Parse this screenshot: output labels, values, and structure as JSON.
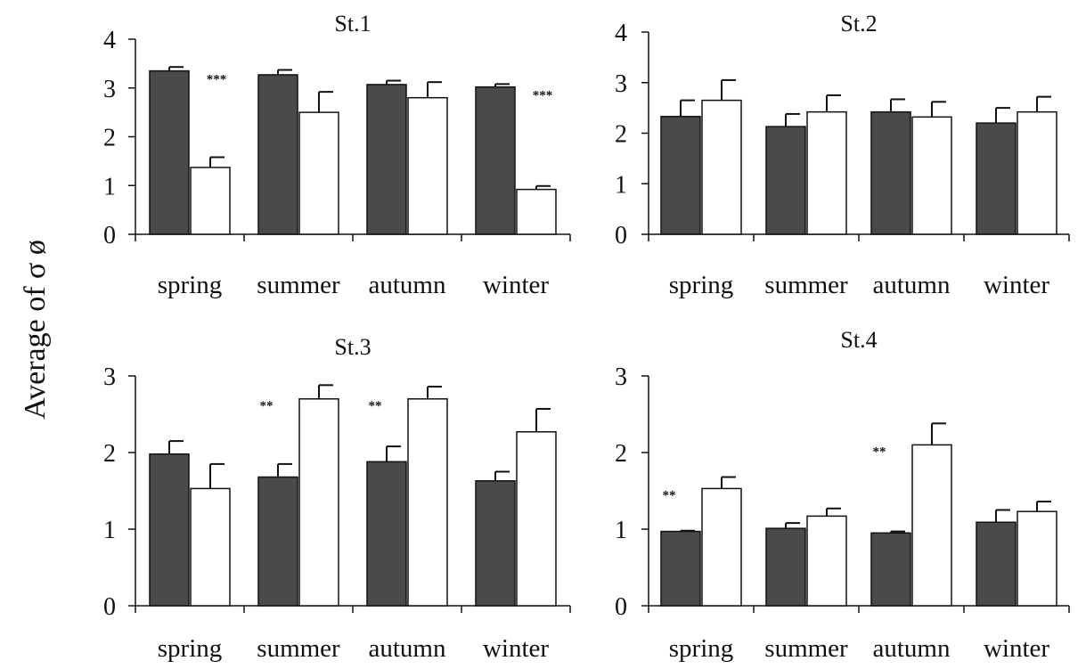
{
  "figure": {
    "ylabel": "Average of σ ø"
  },
  "chart_data": [
    {
      "type": "bar",
      "title": "St.1",
      "categories": [
        "spring",
        "summer",
        "autumn",
        "winter"
      ],
      "ylim": [
        0,
        4
      ],
      "yticks": [
        0,
        1,
        2,
        3,
        4
      ],
      "series": [
        {
          "color": "#4a4a4a",
          "values": [
            3.35,
            3.27,
            3.07,
            3.02
          ],
          "errors": [
            0.08,
            0.1,
            0.08,
            0.06
          ]
        },
        {
          "color": "#ffffff",
          "values": [
            1.37,
            2.5,
            2.8,
            0.92
          ],
          "errors": [
            0.21,
            0.42,
            0.32,
            0.07
          ]
        }
      ],
      "annotations": [
        {
          "category": "spring",
          "text": "***"
        },
        {
          "category": "winter",
          "text": "***"
        }
      ]
    },
    {
      "type": "bar",
      "title": "St.2",
      "categories": [
        "spring",
        "summer",
        "autumn",
        "winter"
      ],
      "ylim": [
        0,
        4
      ],
      "yticks": [
        0,
        1,
        2,
        3,
        4
      ],
      "series": [
        {
          "color": "#4a4a4a",
          "values": [
            2.33,
            2.13,
            2.42,
            2.2
          ],
          "errors": [
            0.32,
            0.25,
            0.25,
            0.3
          ]
        },
        {
          "color": "#ffffff",
          "values": [
            2.65,
            2.42,
            2.32,
            2.42
          ],
          "errors": [
            0.4,
            0.33,
            0.3,
            0.3
          ]
        }
      ],
      "annotations": []
    },
    {
      "type": "bar",
      "title": "St.3",
      "categories": [
        "spring",
        "summer",
        "autumn",
        "winter"
      ],
      "ylim": [
        0,
        3
      ],
      "yticks": [
        0,
        1,
        2,
        3
      ],
      "series": [
        {
          "color": "#4a4a4a",
          "values": [
            1.98,
            1.68,
            1.88,
            1.63
          ],
          "errors": [
            0.17,
            0.17,
            0.2,
            0.12
          ]
        },
        {
          "color": "#ffffff",
          "values": [
            1.53,
            2.7,
            2.7,
            2.27
          ],
          "errors": [
            0.32,
            0.18,
            0.16,
            0.3
          ]
        }
      ],
      "annotations": [
        {
          "category": "summer",
          "text": "**"
        },
        {
          "category": "autumn",
          "text": "**"
        }
      ]
    },
    {
      "type": "bar",
      "title": "St.4",
      "categories": [
        "spring",
        "summer",
        "autumn",
        "winter"
      ],
      "ylim": [
        0,
        3
      ],
      "yticks": [
        0,
        1,
        2,
        3
      ],
      "series": [
        {
          "color": "#4a4a4a",
          "values": [
            0.97,
            1.01,
            0.95,
            1.09
          ],
          "errors": [
            0.01,
            0.07,
            0.02,
            0.16
          ]
        },
        {
          "color": "#ffffff",
          "values": [
            1.53,
            1.17,
            2.1,
            1.23
          ],
          "errors": [
            0.15,
            0.1,
            0.28,
            0.13
          ]
        }
      ],
      "annotations": [
        {
          "category": "spring",
          "text": "**"
        },
        {
          "category": "autumn",
          "text": "**"
        }
      ]
    }
  ]
}
